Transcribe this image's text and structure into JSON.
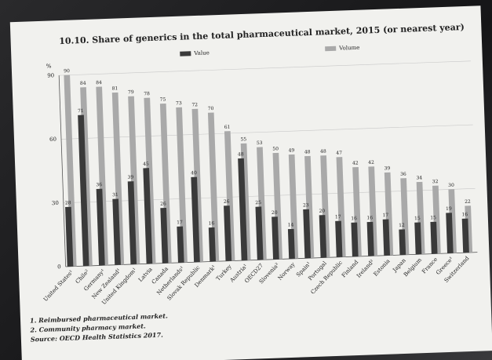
{
  "chart_data": {
    "type": "bar",
    "title": "10.10. Share of generics in the total pharmaceutical market, 2015 (or nearest year)",
    "ylabel": "%",
    "categories": [
      "United States¹",
      "Chile²",
      "Germany¹",
      "New Zealand¹",
      "United Kingdom¹",
      "Latvia",
      "Canada",
      "Netherlands¹",
      "Slovak Republic",
      "Denmark¹",
      "Turkey",
      "Austria¹",
      "OECD27",
      "Slovenia²",
      "Norway",
      "Spain¹",
      "Portugal",
      "Czech Republic",
      "Finland",
      "Ireland²",
      "Estonia",
      "Japan",
      "Belgium",
      "France",
      "Greece¹",
      "Switzerland"
    ],
    "series": [
      {
        "name": "Value",
        "color": "#3a3a3a",
        "values": [
          28,
          71,
          36,
          31,
          39,
          45,
          26,
          17,
          40,
          16,
          26,
          48,
          25,
          20,
          14,
          23,
          20,
          17,
          16,
          16,
          17,
          12,
          15,
          15,
          19,
          16
        ]
      },
      {
        "name": "Volume",
        "color": "#a9a9a9",
        "values": [
          90,
          84,
          84,
          81,
          79,
          78,
          75,
          73,
          72,
          70,
          61,
          55,
          53,
          50,
          49,
          48,
          48,
          47,
          42,
          42,
          39,
          36,
          34,
          32,
          30,
          22
        ]
      }
    ],
    "ylim": [
      0,
      90
    ],
    "yticks": [
      0,
      30,
      60,
      90
    ],
    "grid": true,
    "notes": [
      "1. Reimbursed pharmaceutical market.",
      "2. Community pharmacy market."
    ],
    "source": "Source: OECD Health Statistics 2017."
  }
}
